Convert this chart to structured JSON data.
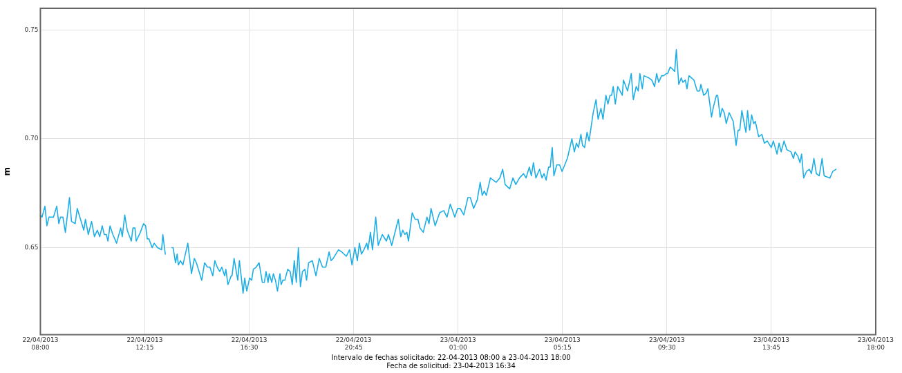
{
  "chart_data": {
    "type": "line",
    "ylabel": "m",
    "grid": true,
    "marker": "none",
    "line_style": "solid",
    "annotations": [
      "Intervalo de fechas solicitado: 22-04-2013 08:00 a 23-04-2013 18:00",
      "Fecha de solicitud: 23-04-2013 16:34"
    ],
    "xlim": [
      "2013-04-22T08:00",
      "2013-04-23T18:00"
    ],
    "xticks": [
      {
        "value": "2013-04-22T08:00",
        "label": "22/04/2013\n08:00"
      },
      {
        "value": "2013-04-22T12:15",
        "label": "22/04/2013\n12:15"
      },
      {
        "value": "2013-04-22T16:30",
        "label": "22/04/2013\n16:30"
      },
      {
        "value": "2013-04-22T20:45",
        "label": "22/04/2013\n20:45"
      },
      {
        "value": "2013-04-23T01:00",
        "label": "23/04/2013\n01:00"
      },
      {
        "value": "2013-04-23T05:15",
        "label": "23/04/2013\n05:15"
      },
      {
        "value": "2013-04-23T09:30",
        "label": "23/04/2013\n09:30"
      },
      {
        "value": "2013-04-23T13:45",
        "label": "23/04/2013\n13:45"
      },
      {
        "value": "2013-04-23T18:00",
        "label": "23/04/2013\n18:00"
      }
    ],
    "ylim": [
      0.61,
      0.76
    ],
    "yticks": [
      0.65,
      {
        "value": 0.7,
        "label": "0.70"
      },
      0.75
    ],
    "x": [
      "2013-04-22T08:00",
      "2013-04-22T08:04",
      "2013-04-22T08:11",
      "2013-04-22T08:16",
      "2013-04-22T08:21",
      "2013-04-22T08:32",
      "2013-04-22T08:40",
      "2013-04-22T08:45",
      "2013-04-22T08:49",
      "2013-04-22T08:55",
      "2013-04-22T09:01",
      "2013-04-22T09:11",
      "2013-04-22T09:16",
      "2013-04-22T09:25",
      "2013-04-22T09:30",
      "2013-04-22T09:46",
      "2013-04-22T09:50",
      "2013-04-22T09:57",
      "2013-04-22T10:05",
      "2013-04-22T10:12",
      "2013-04-22T10:19",
      "2013-04-22T10:25",
      "2013-04-22T10:31",
      "2013-04-22T10:36",
      "2013-04-22T10:41",
      "2013-04-22T10:45",
      "2013-04-22T10:50",
      "2013-04-22T10:57",
      "2013-04-22T11:06",
      "2013-04-22T11:16",
      "2013-04-22T11:20",
      "2013-04-22T11:26",
      "2013-04-22T11:32",
      "2013-04-22T11:42",
      "2013-04-22T11:46",
      "2013-04-22T11:51",
      "2013-04-22T11:54",
      "2013-04-22T12:04",
      "2013-04-22T12:12",
      "2013-04-22T12:17",
      "2013-04-22T12:21",
      "2013-04-22T12:25",
      "2013-04-22T12:33",
      "2013-04-22T12:38",
      "2013-04-22T12:46",
      "2013-04-22T12:56",
      "2013-04-22T12:59",
      "2013-04-22T13:05",
      "2013-04-22T13:13",
      "2013-04-22T13:21",
      "2013-04-22T13:24",
      "2013-04-22T13:30",
      "2013-04-22T13:34",
      "2013-04-22T13:37",
      "2013-04-22T13:42",
      "2013-04-22T13:48",
      "2013-04-22T14:00",
      "2013-04-22T14:09",
      "2013-04-22T14:16",
      "2013-04-22T14:21",
      "2013-04-22T14:34",
      "2013-04-22T14:41",
      "2013-04-22T14:48",
      "2013-04-22T14:54",
      "2013-04-22T15:01",
      "2013-04-22T15:06",
      "2013-04-22T15:12",
      "2013-04-22T15:18",
      "2013-04-22T15:23",
      "2013-04-22T15:30",
      "2013-04-22T15:33",
      "2013-04-22T15:38",
      "2013-04-22T15:46",
      "2013-04-22T15:48",
      "2013-04-22T15:53",
      "2013-04-22T16:02",
      "2013-04-22T16:06",
      "2013-04-22T16:15",
      "2013-04-22T16:19",
      "2013-04-22T16:24",
      "2013-04-22T16:31",
      "2013-04-22T16:36",
      "2013-04-22T16:40",
      "2013-04-22T16:47",
      "2013-04-22T16:54",
      "2013-04-22T17:02",
      "2013-04-22T17:07",
      "2013-04-22T17:11",
      "2013-04-22T17:16",
      "2013-04-22T17:19",
      "2013-04-22T17:25",
      "2013-04-22T17:29",
      "2013-04-22T17:34",
      "2013-04-22T17:39",
      "2013-04-22T17:45",
      "2013-04-22T17:48",
      "2013-04-22T17:52",
      "2013-04-22T17:57",
      "2013-04-22T18:04",
      "2013-04-22T18:10",
      "2013-04-22T18:15",
      "2013-04-22T18:20",
      "2013-04-22T18:25",
      "2013-04-22T18:30",
      "2013-04-22T18:35",
      "2013-04-22T18:40",
      "2013-04-22T18:46",
      "2013-04-22T18:50",
      "2013-04-22T18:55",
      "2013-04-22T19:04",
      "2013-04-22T19:13",
      "2013-04-22T19:21",
      "2013-04-22T19:29",
      "2013-04-22T19:37",
      "2013-04-22T19:45",
      "2013-04-22T19:50",
      "2013-04-22T19:55",
      "2013-04-22T20:08",
      "2013-04-22T20:16",
      "2013-04-22T20:27",
      "2013-04-22T20:35",
      "2013-04-22T20:41",
      "2013-04-22T20:48",
      "2013-04-22T20:54",
      "2013-04-22T20:59",
      "2013-04-22T21:04",
      "2013-04-22T21:10",
      "2013-04-22T21:17",
      "2013-04-22T21:20",
      "2013-04-22T21:26",
      "2013-04-22T21:31",
      "2013-04-22T21:39",
      "2013-04-22T21:45",
      "2013-04-22T21:55",
      "2013-04-22T22:05",
      "2013-04-22T22:10",
      "2013-04-22T22:18",
      "2013-04-22T22:34",
      "2013-04-22T22:40",
      "2013-04-22T22:45",
      "2013-04-22T22:50",
      "2013-04-22T22:55",
      "2013-04-22T22:59",
      "2013-04-22T23:08",
      "2013-04-22T23:15",
      "2013-04-22T23:22",
      "2013-04-22T23:27",
      "2013-04-22T23:35",
      "2013-04-22T23:44",
      "2013-04-22T23:49",
      "2013-04-22T23:54",
      "2013-04-23T00:04",
      "2013-04-23T00:15",
      "2013-04-23T00:25",
      "2013-04-23T00:33",
      "2013-04-23T00:41",
      "2013-04-23T00:52",
      "2013-04-23T00:59",
      "2013-04-23T01:05",
      "2013-04-23T01:14",
      "2013-04-23T01:24",
      "2013-04-23T01:30",
      "2013-04-23T01:38",
      "2013-04-23T01:47",
      "2013-04-23T01:54",
      "2013-04-23T01:59",
      "2013-04-23T02:04",
      "2013-04-23T02:09",
      "2013-04-23T02:19",
      "2013-04-23T02:33",
      "2013-04-23T02:42",
      "2013-04-23T02:49",
      "2013-04-23T02:55",
      "2013-04-23T03:06",
      "2013-04-23T03:14",
      "2013-04-23T03:21",
      "2013-04-23T03:30",
      "2013-04-23T03:40",
      "2013-04-23T03:46",
      "2013-04-23T03:54",
      "2013-04-23T03:59",
      "2013-04-23T04:04",
      "2013-04-23T04:10",
      "2013-04-23T04:19",
      "2013-04-23T04:25",
      "2013-04-23T04:30",
      "2013-04-23T04:35",
      "2013-04-23T04:41",
      "2013-04-23T04:45",
      "2013-04-23T04:50",
      "2013-04-23T04:54",
      "2013-04-23T05:01",
      "2013-04-23T05:08",
      "2013-04-23T05:14",
      "2013-04-23T05:27",
      "2013-04-23T05:38",
      "2013-04-23T05:44",
      "2013-04-23T05:49",
      "2013-04-23T05:54",
      "2013-04-23T06:00",
      "2013-04-23T06:04",
      "2013-04-23T06:09",
      "2013-04-23T06:15",
      "2013-04-23T06:20",
      "2013-04-23T06:30",
      "2013-04-23T06:37",
      "2013-04-23T06:42",
      "2013-04-23T06:49",
      "2013-04-23T06:54",
      "2013-04-23T07:01",
      "2013-04-23T07:06",
      "2013-04-23T07:11",
      "2013-04-23T07:15",
      "2013-04-23T07:19",
      "2013-04-23T07:24",
      "2013-04-23T07:30",
      "2013-04-23T07:41",
      "2013-04-23T07:44",
      "2013-04-23T07:54",
      "2013-04-23T08:03",
      "2013-04-23T08:08",
      "2013-04-23T08:15",
      "2013-04-23T08:20",
      "2013-04-23T08:24",
      "2013-04-23T08:30",
      "2013-04-23T08:34",
      "2013-04-23T08:46",
      "2013-04-23T08:53",
      "2013-04-23T09:00",
      "2013-04-23T09:05",
      "2013-04-23T09:10",
      "2013-04-23T09:17",
      "2013-04-23T09:22",
      "2013-04-23T09:29",
      "2013-04-23T09:32",
      "2013-04-23T09:38",
      "2013-04-23T09:44",
      "2013-04-23T09:49",
      "2013-04-23T09:53",
      "2013-04-23T09:59",
      "2013-04-23T10:05",
      "2013-04-23T10:09",
      "2013-04-23T10:15",
      "2013-04-23T10:19",
      "2013-04-23T10:24",
      "2013-04-23T10:36",
      "2013-04-23T10:44",
      "2013-04-23T10:50",
      "2013-04-23T10:53",
      "2013-04-23T11:00",
      "2013-04-23T11:06",
      "2013-04-23T11:10",
      "2013-04-23T11:19",
      "2013-04-23T11:24",
      "2013-04-23T11:31",
      "2013-04-23T11:34",
      "2013-04-23T11:40",
      "2013-04-23T11:45",
      "2013-04-23T11:50",
      "2013-04-23T11:55",
      "2013-04-23T12:02",
      "2013-04-23T12:12",
      "2013-04-23T12:19",
      "2013-04-23T12:24",
      "2013-04-23T12:28",
      "2013-04-23T12:33",
      "2013-04-23T12:43",
      "2013-04-23T12:47",
      "2013-04-23T12:52",
      "2013-04-23T12:57",
      "2013-04-23T13:02",
      "2013-04-23T13:06",
      "2013-04-23T13:14",
      "2013-04-23T13:22",
      "2013-04-23T13:28",
      "2013-04-23T13:35",
      "2013-04-23T13:45",
      "2013-04-23T13:50",
      "2013-04-23T13:59",
      "2013-04-23T14:04",
      "2013-04-23T14:09",
      "2013-04-23T14:16",
      "2013-04-23T14:23",
      "2013-04-23T14:33",
      "2013-04-23T14:39",
      "2013-04-23T14:43",
      "2013-04-23T14:50",
      "2013-04-23T14:55",
      "2013-04-23T14:59",
      "2013-04-23T15:04",
      "2013-04-23T15:11",
      "2013-04-23T15:18",
      "2013-04-23T15:23",
      "2013-04-23T15:29",
      "2013-04-23T15:35",
      "2013-04-23T15:42",
      "2013-04-23T15:49",
      "2013-04-23T15:54",
      "2013-04-23T16:08",
      "2013-04-23T16:15",
      "2013-04-23T16:23"
    ],
    "series": [
      {
        "color": "#1eaee6",
        "values": [
          0.665,
          0.664,
          0.669,
          0.66,
          0.664,
          0.664,
          0.669,
          0.661,
          0.664,
          0.664,
          0.657,
          0.673,
          0.662,
          0.661,
          0.668,
          0.658,
          0.663,
          0.656,
          0.662,
          0.655,
          0.658,
          0.655,
          0.66,
          0.656,
          0.656,
          0.653,
          0.66,
          0.656,
          0.652,
          0.659,
          0.655,
          0.665,
          0.658,
          0.653,
          0.659,
          0.659,
          0.653,
          0.657,
          0.661,
          0.66,
          0.654,
          0.654,
          0.65,
          0.652,
          0.65,
          0.649,
          0.656,
          0.647,
          null,
          0.65,
          0.65,
          0.643,
          0.647,
          0.642,
          0.644,
          0.642,
          0.652,
          0.638,
          0.645,
          0.643,
          0.635,
          0.643,
          0.641,
          0.641,
          0.637,
          0.644,
          0.641,
          0.639,
          0.641,
          0.637,
          0.64,
          0.633,
          0.637,
          0.637,
          0.645,
          0.635,
          0.644,
          0.629,
          0.636,
          0.63,
          0.636,
          0.635,
          0.64,
          0.641,
          0.643,
          0.634,
          0.634,
          0.639,
          0.634,
          0.638,
          0.634,
          0.638,
          0.635,
          0.63,
          0.638,
          0.633,
          0.635,
          0.635,
          0.64,
          0.639,
          0.633,
          0.644,
          0.634,
          0.65,
          0.632,
          0.639,
          0.64,
          0.635,
          0.643,
          0.644,
          0.637,
          0.645,
          0.641,
          0.641,
          0.648,
          0.644,
          0.645,
          0.649,
          0.648,
          0.646,
          0.649,
          0.642,
          0.65,
          0.644,
          0.652,
          0.647,
          0.649,
          0.652,
          0.649,
          0.657,
          0.649,
          0.664,
          0.651,
          0.656,
          0.653,
          0.656,
          0.651,
          0.663,
          0.655,
          0.658,
          0.656,
          0.657,
          0.653,
          0.666,
          0.663,
          0.663,
          0.659,
          0.657,
          0.664,
          0.661,
          0.668,
          0.66,
          0.666,
          0.667,
          0.664,
          0.67,
          0.664,
          0.668,
          0.668,
          0.665,
          0.673,
          0.673,
          0.668,
          0.672,
          0.68,
          0.674,
          0.676,
          0.674,
          0.682,
          0.68,
          0.682,
          0.686,
          0.679,
          0.677,
          0.682,
          0.679,
          0.682,
          0.684,
          0.682,
          0.687,
          0.683,
          0.689,
          0.682,
          0.686,
          0.682,
          0.684,
          0.681,
          0.687,
          0.687,
          0.696,
          0.683,
          0.688,
          0.688,
          0.685,
          0.691,
          0.7,
          0.694,
          0.698,
          0.696,
          0.702,
          0.697,
          0.696,
          0.703,
          0.699,
          0.712,
          0.718,
          0.709,
          0.714,
          0.709,
          0.72,
          0.716,
          0.72,
          0.72,
          0.724,
          0.716,
          0.724,
          0.72,
          0.727,
          0.722,
          0.73,
          0.718,
          0.724,
          0.722,
          0.73,
          0.723,
          0.729,
          0.728,
          0.727,
          0.724,
          0.73,
          0.726,
          0.729,
          0.729,
          0.73,
          0.73,
          0.733,
          0.732,
          0.731,
          0.741,
          0.725,
          0.728,
          0.726,
          0.727,
          0.723,
          0.729,
          0.727,
          0.722,
          0.722,
          0.725,
          0.72,
          0.721,
          0.723,
          0.71,
          0.715,
          0.72,
          0.72,
          0.71,
          0.714,
          0.712,
          0.707,
          0.712,
          0.708,
          0.697,
          0.704,
          0.704,
          0.713,
          0.703,
          0.713,
          0.704,
          0.711,
          0.707,
          0.708,
          0.701,
          0.702,
          0.698,
          0.699,
          0.696,
          0.699,
          0.693,
          0.698,
          0.694,
          0.699,
          0.695,
          0.694,
          0.691,
          0.694,
          0.692,
          0.689,
          0.693,
          0.682,
          0.685,
          0.686,
          0.684,
          0.691,
          0.684,
          0.683,
          0.691,
          0.683,
          0.682,
          0.685,
          0.686
        ]
      }
    ]
  }
}
